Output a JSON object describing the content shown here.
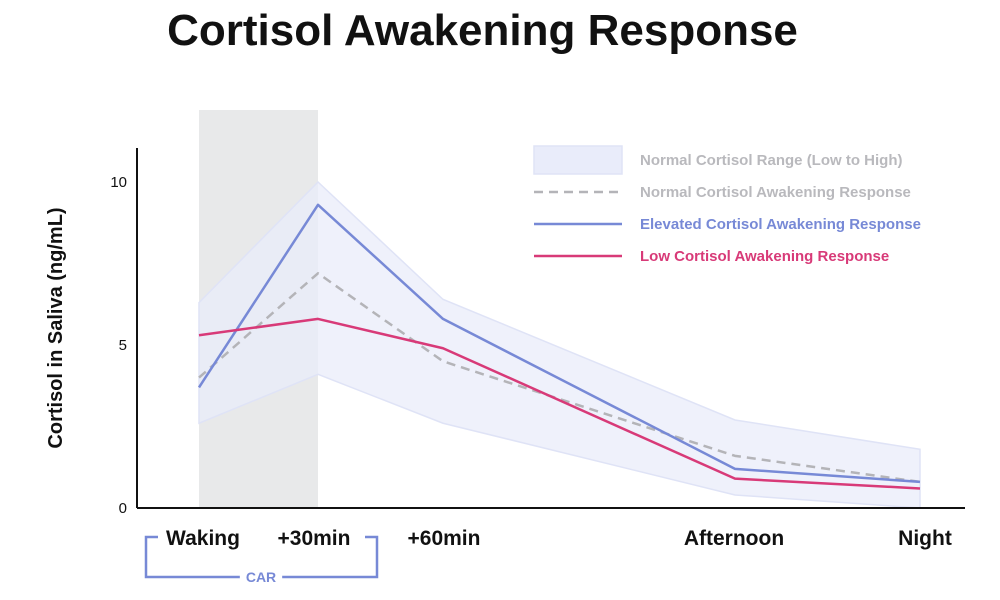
{
  "chart_data": {
    "type": "line",
    "title": "Cortisol Awakening Response",
    "xlabel": "",
    "ylabel": "Cortisol in Saliva (ng/mL)",
    "ylim": [
      0,
      10.5
    ],
    "yticks": [
      "0",
      "5",
      "10"
    ],
    "categories": [
      "Waking",
      "+30min",
      "+60min",
      "Afternoon",
      "Night"
    ],
    "band": {
      "name": "Normal Cortisol Range (Low to High)",
      "low": [
        2.6,
        4.1,
        2.6,
        0.4,
        0.0
      ],
      "high": [
        6.3,
        10.0,
        6.4,
        2.7,
        1.8
      ]
    },
    "series": [
      {
        "name": "Normal Cortisol Awakening Response",
        "values": [
          4.0,
          7.2,
          4.5,
          1.6,
          0.8
        ],
        "style": "dashed"
      },
      {
        "name": "Elevated Cortisol Awakening Response",
        "values": [
          3.7,
          9.3,
          5.8,
          1.2,
          0.8
        ],
        "style": "solid"
      },
      {
        "name": "Low Cortisol Awakening Response",
        "values": [
          5.3,
          5.8,
          4.9,
          0.9,
          0.6
        ],
        "style": "solid"
      }
    ],
    "shaded_period": {
      "from": "Waking",
      "to": "+30min"
    },
    "bracket_label": "CAR",
    "grid": false,
    "legend_position": "top-right"
  },
  "colors": {
    "band_fill": "#e9ecfa",
    "band_stroke": "#dfe3f6",
    "shaded_period": "#e8e9ea",
    "normal": "#b4b4b8",
    "elevated": "#7789d6",
    "low": "#d83a78",
    "legend_band_text": "#b9b9bd",
    "axis": "#111111"
  }
}
